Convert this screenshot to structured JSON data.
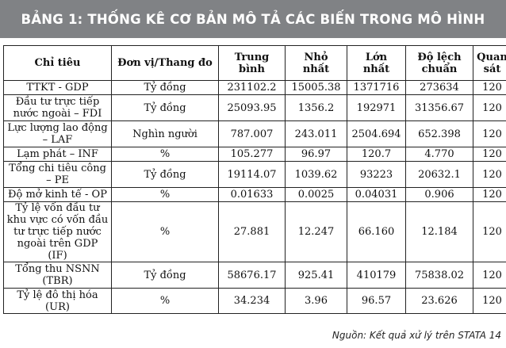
{
  "title": "BẢNG 1: THỐNG KÊ CƠ BẢN MÔ TẢ CÁC BIẾN TRONG MÔ HÌNH",
  "headers": {
    "indicator": "Chỉ tiêu",
    "unit": "Đơn vị/Thang đo",
    "mean_1": "Trung",
    "mean_2": "bình",
    "min_1": "Nhỏ",
    "min_2": "nhất",
    "max_1": "Lớn",
    "max_2": "nhất",
    "sd_1": "Độ lệch",
    "sd_2": "chuẩn",
    "obs_1": "Quan",
    "obs_2": "sát"
  },
  "rows": [
    {
      "label_lines": [
        "TTKT - GDP"
      ],
      "unit": "Tỷ đồng",
      "mean": "231102.2",
      "min": "15005.38",
      "max": "1371716",
      "sd": "273634",
      "obs": "120"
    },
    {
      "label_lines": [
        "Đầu tư trực tiếp",
        "nước ngoài – FDI"
      ],
      "unit": "Tỷ đồng",
      "mean": "25093.95",
      "min": "1356.2",
      "max": "192971",
      "sd": "31356.67",
      "obs": "120"
    },
    {
      "label_lines": [
        "Lực lượng lao động",
        "– LAF"
      ],
      "unit": "Nghìn người",
      "mean": "787.007",
      "min": "243.011",
      "max": "2504.694",
      "sd": "652.398",
      "obs": "120"
    },
    {
      "label_lines": [
        "Lạm phát – INF"
      ],
      "unit": "%",
      "mean": "105.277",
      "min": "96.97",
      "max": "120.7",
      "sd": "4.770",
      "obs": "120"
    },
    {
      "label_lines": [
        "Tổng chi tiêu công",
        "– PE"
      ],
      "unit": "Tỷ đồng",
      "mean": "19114.07",
      "min": "1039.62",
      "max": "93223",
      "sd": "20632.1",
      "obs": "120"
    },
    {
      "label_lines": [
        "Độ mở kinh tế - OP"
      ],
      "unit": "%",
      "mean": "0.01633",
      "min": "0.0025",
      "max": "0.04031",
      "sd": "0.906",
      "obs": "120"
    },
    {
      "label_lines": [
        "Tỷ lệ vốn đầu tư",
        "khu vực có vốn đầu",
        "tư trực tiếp nước",
        "ngoài trên GDP (IF)"
      ],
      "unit": "%",
      "mean": "27.881",
      "min": "12.247",
      "max": "66.160",
      "sd": "12.184",
      "obs": "120"
    },
    {
      "label_lines": [
        "Tổng thu NSNN",
        "(TBR)"
      ],
      "unit": "Tỷ đồng",
      "mean": "58676.17",
      "min": "925.41",
      "max": "410179",
      "sd": "75838.02",
      "obs": "120"
    },
    {
      "label_lines": [
        "Tỷ lệ đô thị hóa",
        "(UR)"
      ],
      "unit": "%",
      "mean": "34.234",
      "min": "3.96",
      "max": "96.57",
      "sd": "23.626",
      "obs": "120"
    }
  ],
  "source": "Nguồn: Kết quả xử lý trên STATA 14"
}
